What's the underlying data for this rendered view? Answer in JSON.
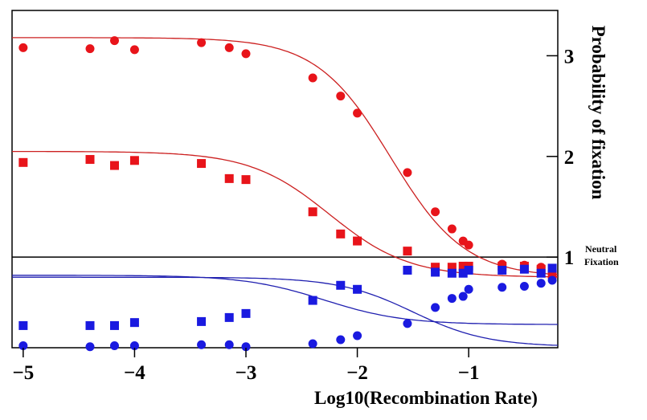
{
  "chart_data": {
    "type": "scatter",
    "title": "",
    "xlabel": "Log10(Recombination Rate)",
    "ylabel": "Probability of fixation",
    "xlim": [
      -5.1,
      -0.2
    ],
    "ylim": [
      0.1,
      3.45
    ],
    "grid": false,
    "x_ticks": [
      -5,
      -4,
      -3,
      -2,
      -1
    ],
    "x_tick_labels": [
      "−5",
      "−4",
      "−3",
      "−2",
      "−1"
    ],
    "y_ticks": [
      1,
      2,
      3
    ],
    "y_tick_labels": [
      "1",
      "2",
      "3"
    ],
    "y_axis_side": "right",
    "reference_line": {
      "y": 1,
      "label_lines": [
        "Neutral",
        "Fixation"
      ]
    },
    "colors": {
      "red": "#e8141a",
      "blue": "#1a1ae0",
      "red_curve": "#cc2020",
      "blue_curve": "#2020b0"
    },
    "series": [
      {
        "color": "red",
        "marker": "circle",
        "x": [
          -5,
          -4.4,
          -4.18,
          -4,
          -3.4,
          -3.15,
          -3,
          -2.4,
          -2.15,
          -2,
          -1.55,
          -1.3,
          -1.15,
          -1.05,
          -1,
          -0.7,
          -0.5,
          -0.35,
          -0.25
        ],
        "y": [
          3.08,
          3.07,
          3.15,
          3.06,
          3.13,
          3.08,
          3.02,
          2.78,
          2.6,
          2.43,
          1.84,
          1.45,
          1.28,
          1.16,
          1.12,
          0.93,
          0.92,
          0.9,
          0.85
        ],
        "fit": {
          "low": 0.8,
          "high": 3.18,
          "mid": -1.7,
          "slope": 3.0
        }
      },
      {
        "color": "red",
        "marker": "square",
        "x": [
          -5,
          -4.4,
          -4.18,
          -4,
          -3.4,
          -3.15,
          -3,
          -2.4,
          -2.15,
          -2,
          -1.55,
          -1.3,
          -1.15,
          -1.05,
          -1,
          -0.7,
          -0.5,
          -0.35,
          -0.25
        ],
        "y": [
          1.94,
          1.97,
          1.91,
          1.96,
          1.93,
          1.78,
          1.77,
          1.45,
          1.23,
          1.16,
          1.06,
          0.9,
          0.9,
          0.91,
          0.91,
          0.91,
          0.91,
          0.88,
          0.83
        ],
        "fit": {
          "low": 0.8,
          "high": 2.05,
          "mid": -2.25,
          "slope": 2.8
        }
      },
      {
        "color": "blue",
        "marker": "square",
        "x": [
          -5,
          -4.4,
          -4.18,
          -4,
          -3.4,
          -3.15,
          -3,
          -2.4,
          -2.15,
          -2,
          -1.55,
          -1.3,
          -1.15,
          -1.05,
          -1,
          -0.7,
          -0.5,
          -0.35,
          -0.25
        ],
        "y": [
          0.32,
          0.32,
          0.32,
          0.35,
          0.36,
          0.4,
          0.44,
          0.57,
          0.72,
          0.68,
          0.87,
          0.85,
          0.84,
          0.84,
          0.87,
          0.87,
          0.88,
          0.84,
          0.89
        ],
        "fit": {
          "low": 0.33,
          "high": 0.82,
          "mid": -2.3,
          "slope": 2.8
        }
      },
      {
        "color": "blue",
        "marker": "circle",
        "x": [
          -5,
          -4.4,
          -4.18,
          -4,
          -3.4,
          -3.15,
          -3,
          -2.4,
          -2.15,
          -2,
          -1.55,
          -1.3,
          -1.15,
          -1.05,
          -1,
          -0.7,
          -0.5,
          -0.35,
          -0.25
        ],
        "y": [
          0.12,
          0.11,
          0.12,
          0.12,
          0.13,
          0.13,
          0.11,
          0.14,
          0.18,
          0.22,
          0.34,
          0.5,
          0.59,
          0.61,
          0.68,
          0.7,
          0.71,
          0.74,
          0.77
        ],
        "fit": {
          "low": 0.11,
          "high": 0.8,
          "mid": -1.5,
          "slope": 3.0
        }
      }
    ]
  }
}
